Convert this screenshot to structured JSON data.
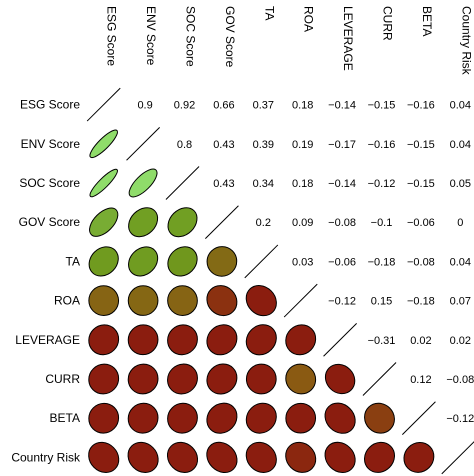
{
  "chart_data": {
    "type": "heatmap",
    "variables": [
      "ESG Score",
      "ENV Score",
      "SOC Score",
      "GOV Score",
      "TA",
      "ROA",
      "LEVERAGE",
      "CURR",
      "BETA",
      "Country Risk"
    ],
    "matrix": [
      [
        1,
        0.9,
        0.92,
        0.66,
        0.37,
        0.18,
        -0.14,
        -0.15,
        -0.16,
        0.04
      ],
      [
        0.9,
        1,
        0.8,
        0.43,
        0.39,
        0.19,
        -0.17,
        -0.16,
        -0.15,
        0.04
      ],
      [
        0.92,
        0.8,
        1,
        0.43,
        0.34,
        0.18,
        -0.14,
        -0.12,
        -0.15,
        0.05
      ],
      [
        0.66,
        0.43,
        0.43,
        1,
        0.2,
        0.09,
        -0.08,
        -0.1,
        -0.06,
        0
      ],
      [
        0.37,
        0.39,
        0.34,
        0.2,
        1,
        0.03,
        -0.06,
        -0.18,
        -0.08,
        0.04
      ],
      [
        0.18,
        0.19,
        0.18,
        0.09,
        0.03,
        1,
        -0.12,
        0.15,
        -0.18,
        0.07
      ],
      [
        -0.14,
        -0.17,
        -0.14,
        -0.08,
        -0.06,
        -0.12,
        1,
        -0.31,
        0.02,
        0.02
      ],
      [
        -0.15,
        -0.16,
        -0.12,
        -0.1,
        -0.18,
        0.15,
        -0.31,
        1,
        0.12,
        -0.08
      ],
      [
        -0.16,
        -0.15,
        -0.15,
        -0.06,
        -0.08,
        -0.18,
        0.02,
        0.12,
        1,
        -0.12
      ],
      [
        0.04,
        0.04,
        0.05,
        0,
        0.04,
        0.07,
        0.02,
        -0.08,
        -0.12,
        1
      ]
    ],
    "upper_labels": [
      [
        null,
        "0.9",
        "0.92",
        "0.66",
        "0.37",
        "0.18",
        "−0.14",
        "−0.15",
        "−0.16",
        "0.04"
      ],
      [
        null,
        null,
        "0.8",
        "0.43",
        "0.39",
        "0.19",
        "−0.17",
        "−0.16",
        "−0.15",
        "0.04"
      ],
      [
        null,
        null,
        null,
        "0.43",
        "0.34",
        "0.18",
        "−0.14",
        "−0.12",
        "−0.15",
        "0.05"
      ],
      [
        null,
        null,
        null,
        null,
        "0.2",
        "0.09",
        "−0.08",
        "−0.1",
        "−0.06",
        "0"
      ],
      [
        null,
        null,
        null,
        null,
        null,
        "0.03",
        "−0.06",
        "−0.18",
        "−0.08",
        "0.04"
      ],
      [
        null,
        null,
        null,
        null,
        null,
        null,
        "−0.12",
        "0.15",
        "−0.18",
        "0.07"
      ],
      [
        null,
        null,
        null,
        null,
        null,
        null,
        null,
        "−0.31",
        "0.02",
        "0.02"
      ],
      [
        null,
        null,
        null,
        null,
        null,
        null,
        null,
        null,
        "0.12",
        "−0.08"
      ],
      [
        null,
        null,
        null,
        null,
        null,
        null,
        null,
        null,
        null,
        "−0.12"
      ],
      [
        null,
        null,
        null,
        null,
        null,
        null,
        null,
        null,
        null,
        null
      ]
    ],
    "lower_encoding": "ellipse",
    "upper_encoding": "number",
    "diagonal": "line",
    "grid": false,
    "colors": {
      "strong_positive": "#8fdc6a",
      "moderate_positive": "#6f9a1e",
      "weak": "#8a5a12",
      "negative": "#8b1d0f",
      "outline": "#000000"
    }
  }
}
